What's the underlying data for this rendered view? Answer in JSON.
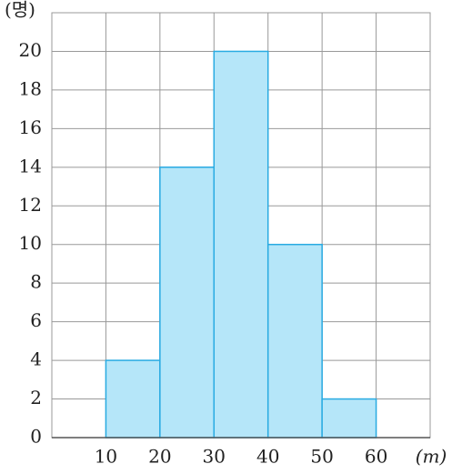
{
  "chart_data": {
    "type": "histogram",
    "y_label": "(명)",
    "x_label": "(m)",
    "bins": [
      10,
      20,
      30,
      40,
      50,
      60
    ],
    "values": [
      4,
      14,
      20,
      10,
      2
    ],
    "color": "#b5e6f9",
    "edge_color": "#29abe2",
    "xlim": [
      0,
      70
    ],
    "xticks": [
      10,
      20,
      30,
      40,
      50,
      60
    ],
    "ylim": [
      0,
      22
    ],
    "yticks": [
      0,
      2,
      4,
      6,
      8,
      10,
      12,
      14,
      16,
      18,
      20
    ],
    "grid": true
  }
}
